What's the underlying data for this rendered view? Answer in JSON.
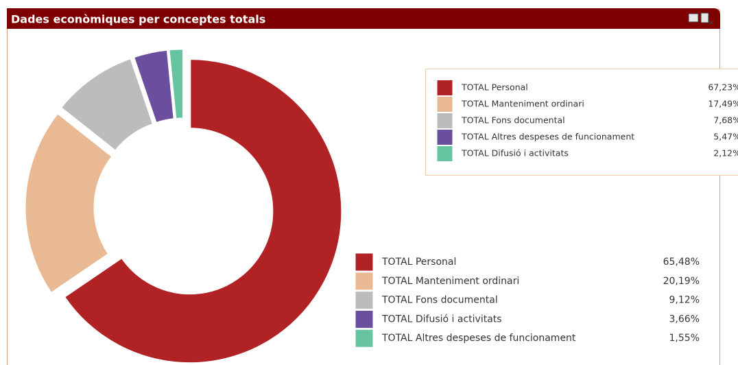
{
  "header": {
    "title": "Dades econòmiques per conceptes totals"
  },
  "chart_data": [
    {
      "type": "pie",
      "categories": [
        "TOTAL Personal",
        "TOTAL Manteniment ordinari",
        "TOTAL Fons documental",
        "TOTAL Difusió i activitats",
        "TOTAL Altres despeses de funcionament"
      ],
      "values": [
        65.48,
        20.19,
        9.12,
        3.66,
        1.55
      ],
      "value_labels": [
        "65,48%",
        "20,19%",
        "9,12%",
        "3,66%",
        "1,55%"
      ],
      "colors": [
        "#b02224",
        "#e9b994",
        "#bcbcbc",
        "#6b4f9e",
        "#66c4a0"
      ],
      "donut": true
    },
    {
      "type": "pie",
      "categories": [
        "TOTAL Personal",
        "TOTAL Manteniment ordinari",
        "TOTAL Fons documental",
        "TOTAL Altres despeses de funcionament",
        "TOTAL Difusió i activitats"
      ],
      "values": [
        67.23,
        17.49,
        7.68,
        5.47,
        2.12
      ],
      "value_labels": [
        "67,23%",
        "17,49%",
        "7,68%",
        "5,47%",
        "2,12%"
      ],
      "colors": [
        "#b02224",
        "#e9b994",
        "#bcbcbc",
        "#6b4f9e",
        "#66c4a0"
      ],
      "donut": true
    }
  ]
}
